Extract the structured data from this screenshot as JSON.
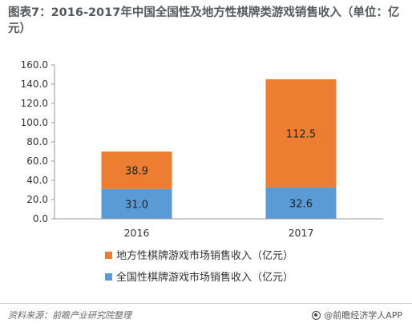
{
  "title": "图表7：2016-2017年中国全国性及地方性棋牌类游戏销售收入（单位：亿元）",
  "chart_data": {
    "type": "bar",
    "stacked": true,
    "categories": [
      "2016",
      "2017"
    ],
    "series": [
      {
        "name": "全国性棋牌游戏市场销售收入（亿元）",
        "values": [
          31.0,
          32.6
        ],
        "color": "#5b9bd5"
      },
      {
        "name": "地方性棋牌游戏市场销售收入（亿元）",
        "values": [
          38.9,
          112.5
        ],
        "color": "#ed7d31"
      }
    ],
    "yticks": [
      "0.0",
      "20.0",
      "40.0",
      "60.0",
      "80.0",
      "100.0",
      "120.0",
      "140.0",
      "160.0"
    ],
    "ylim": [
      0,
      160
    ],
    "grid": false,
    "legend_position": "bottom"
  },
  "footer": {
    "source": "资料来源：前瞻产业研究院整理",
    "brand": "@前瞻经济学人APP"
  }
}
